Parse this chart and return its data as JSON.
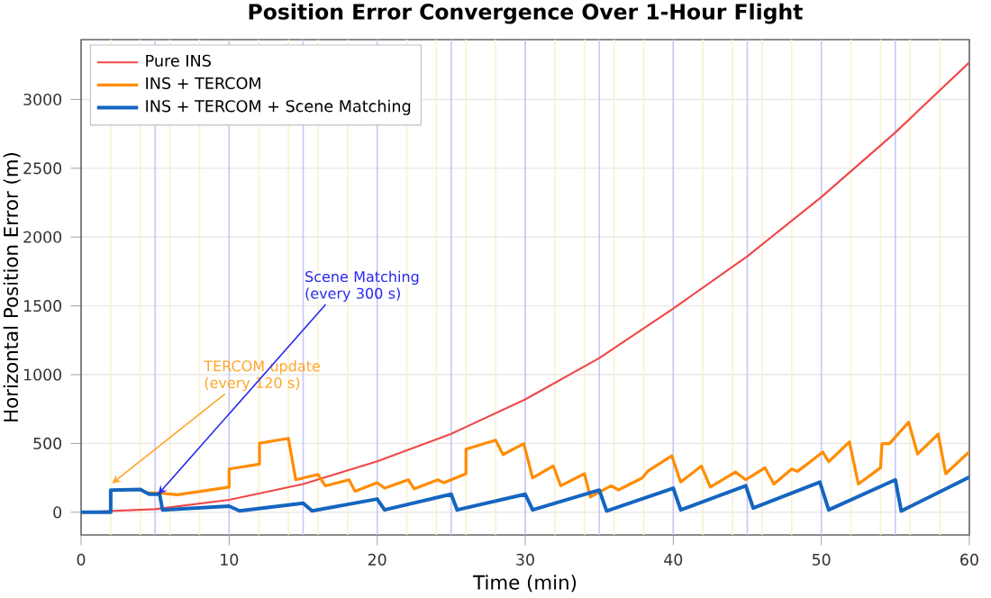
{
  "chart_data": {
    "type": "line",
    "title": "Position Error Convergence Over 1-Hour Flight",
    "xlabel": "Time (min)",
    "ylabel": "Horizontal Position Error (m)",
    "xlim": [
      0,
      60
    ],
    "ylim": [
      -165,
      3435
    ],
    "xticks": [
      0,
      10,
      20,
      30,
      40,
      50,
      60
    ],
    "yticks": [
      0,
      500,
      1000,
      1500,
      2000,
      2500,
      3000
    ],
    "grid": true,
    "legend": "top left",
    "marker": "none",
    "line_style": "solid",
    "series": [
      {
        "name": "Pure INS",
        "color": "#f04848",
        "x": [
          0,
          5,
          10,
          15,
          20,
          25,
          30,
          35,
          40,
          45,
          50,
          55,
          60
        ],
        "values": [
          0,
          22,
          90,
          205,
          370,
          570,
          820,
          1120,
          1480,
          1860,
          2290,
          2760,
          3270
        ]
      },
      {
        "name": "INS + TERCOM",
        "color": "#ff8c00",
        "x": [
          4.4,
          5.3,
          6.5,
          10,
          10,
          12.05,
          12.05,
          14,
          14.5,
          16,
          16.5,
          18.1,
          18.5,
          20,
          20.5,
          22.1,
          22.5,
          24.1,
          24.5,
          26,
          26,
          28,
          28.5,
          29.9,
          30.5,
          31.9,
          32.4,
          34,
          34.4,
          35.8,
          36.3,
          37.9,
          38.3,
          39.9,
          40.5,
          41.9,
          42.5,
          44.2,
          44.9,
          46.2,
          46.8,
          48,
          48.4,
          50.1,
          50.5,
          51.9,
          52.5,
          54,
          54.1,
          54.6,
          55.9,
          56.5,
          57.9,
          58.4,
          60
        ],
        "values": [
          140,
          140,
          127,
          183,
          314,
          350,
          502,
          537,
          236,
          275,
          192,
          236,
          153,
          214,
          175,
          236,
          170,
          236,
          214,
          280,
          458,
          524,
          419,
          498,
          249,
          336,
          192,
          280,
          110,
          192,
          162,
          249,
          301,
          410,
          219,
          336,
          183,
          292,
          236,
          323,
          205,
          314,
          297,
          437,
          367,
          511,
          205,
          323,
          498,
          498,
          655,
          423,
          568,
          280,
          440
        ]
      },
      {
        "name": "INS + TERCOM + Scene Matching",
        "color": "#1565c0",
        "x": [
          0,
          2,
          2,
          4,
          4.6,
          5.3,
          5.5,
          10,
          10.7,
          15,
          15.6,
          20,
          20.5,
          25,
          25.4,
          30,
          30.5,
          35,
          35.5,
          40,
          40.5,
          44.9,
          45.4,
          49.9,
          50.5,
          55,
          55.4,
          60
        ],
        "values": [
          0,
          0,
          160,
          165,
          131,
          131,
          17,
          44,
          10,
          66,
          10,
          96,
          17,
          131,
          17,
          131,
          17,
          161,
          9,
          175,
          17,
          192,
          30,
          219,
          17,
          236,
          9,
          255
        ]
      }
    ],
    "ref_lines": [
      {
        "axis": "x",
        "value": 5,
        "color": "#c8c8f5"
      },
      {
        "axis": "x",
        "value": 10,
        "color": "#c8c8f5"
      },
      {
        "axis": "x",
        "value": 15,
        "color": "#c8c8f5"
      },
      {
        "axis": "x",
        "value": 20,
        "color": "#c8c8f5"
      },
      {
        "axis": "x",
        "value": 25,
        "color": "#c8c8f5"
      },
      {
        "axis": "x",
        "value": 30,
        "color": "#c8c8f5"
      },
      {
        "axis": "x",
        "value": 35,
        "color": "#c8c8f5"
      },
      {
        "axis": "x",
        "value": 40,
        "color": "#c8c8f5"
      },
      {
        "axis": "x",
        "value": 45,
        "color": "#c8c8f5"
      },
      {
        "axis": "x",
        "value": 50,
        "color": "#c8c8f5"
      },
      {
        "axis": "x",
        "value": 55,
        "color": "#c8c8f5"
      },
      {
        "axis": "x",
        "value": 2,
        "color": "#fbf0d2"
      },
      {
        "axis": "x",
        "value": 4,
        "color": "#fbf0d2"
      },
      {
        "axis": "x",
        "value": 6,
        "color": "#fbf0d2"
      },
      {
        "axis": "x",
        "value": 8,
        "color": "#fbf0d2"
      },
      {
        "axis": "x",
        "value": 12,
        "color": "#fbf0d2"
      },
      {
        "axis": "x",
        "value": 14,
        "color": "#fbf0d2"
      },
      {
        "axis": "x",
        "value": 16,
        "color": "#fbf0d2"
      },
      {
        "axis": "x",
        "value": 18,
        "color": "#fbf0d2"
      },
      {
        "axis": "x",
        "value": 22,
        "color": "#fbf0d2"
      },
      {
        "axis": "x",
        "value": 24,
        "color": "#fbf0d2"
      },
      {
        "axis": "x",
        "value": 26,
        "color": "#fbf0d2"
      },
      {
        "axis": "x",
        "value": 28,
        "color": "#fbf0d2"
      },
      {
        "axis": "x",
        "value": 32,
        "color": "#fbf0d2"
      },
      {
        "axis": "x",
        "value": 34,
        "color": "#fbf0d2"
      },
      {
        "axis": "x",
        "value": 36,
        "color": "#fbf0d2"
      },
      {
        "axis": "x",
        "value": 38,
        "color": "#fbf0d2"
      },
      {
        "axis": "x",
        "value": 42,
        "color": "#fbf0d2"
      },
      {
        "axis": "x",
        "value": 44,
        "color": "#fbf0d2"
      },
      {
        "axis": "x",
        "value": 46,
        "color": "#fbf0d2"
      },
      {
        "axis": "x",
        "value": 48,
        "color": "#fbf0d2"
      },
      {
        "axis": "x",
        "value": 52,
        "color": "#fbf0d2"
      },
      {
        "axis": "x",
        "value": 54,
        "color": "#fbf0d2"
      },
      {
        "axis": "x",
        "value": 56,
        "color": "#fbf0d2"
      },
      {
        "axis": "x",
        "value": 58,
        "color": "#fbf0d2"
      }
    ],
    "annotations": [
      {
        "text": "TERCOM update (every 120 s)",
        "x": 2.1,
        "y": 210
      },
      {
        "text": "Scene Matching (every 300 s)",
        "x": 5.2,
        "y": 130
      }
    ]
  }
}
